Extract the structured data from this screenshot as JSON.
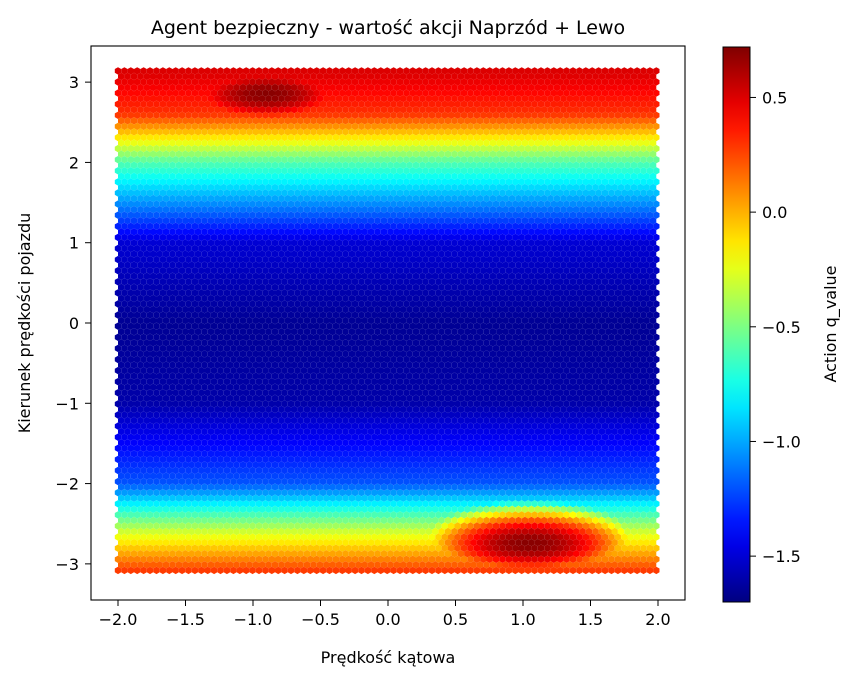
{
  "chart_data": {
    "type": "heatmap",
    "subtype": "hexbin",
    "title": "Agent bezpieczny - wartość akcji Naprzód + Lewo",
    "xlabel": "Prędkość kątowa",
    "ylabel": "Kierunek prędkości pojazdu",
    "xlim": [
      -2.2,
      2.2
    ],
    "ylim": [
      -3.45,
      3.45
    ],
    "x_ticks": [
      -2.0,
      -1.5,
      -1.0,
      -0.5,
      0.0,
      0.5,
      1.0,
      1.5,
      2.0
    ],
    "x_tick_labels": [
      "−2.0",
      "−1.5",
      "−1.0",
      "−0.5",
      "0.0",
      "0.5",
      "1.0",
      "1.5",
      "2.0"
    ],
    "y_ticks": [
      3,
      2,
      1,
      0,
      -1,
      -2,
      -3
    ],
    "y_tick_labels": [
      "3",
      "2",
      "1",
      "0",
      "−1",
      "−2",
      "−3"
    ],
    "grid": false,
    "colorbar": {
      "label": "Action q_value",
      "colormap": "jet",
      "range": [
        -1.7,
        0.72
      ],
      "ticks": [
        0.5,
        0.0,
        -0.5,
        -1.0,
        -1.5
      ],
      "tick_labels": [
        "0.5",
        "0.0",
        "−0.5",
        "−1.0",
        "−1.5"
      ]
    },
    "data_extent": {
      "x": [
        -2.0,
        2.0
      ],
      "y": [
        -3.14,
        3.14
      ]
    },
    "value_profile": [
      {
        "direction": -3.1,
        "value": 0.3
      },
      {
        "direction": -2.6,
        "value": -0.3
      },
      {
        "direction": -2.0,
        "value": -1.2
      },
      {
        "direction": -1.0,
        "value": -1.6
      },
      {
        "direction": 0.0,
        "value": -1.65
      },
      {
        "direction": 1.0,
        "value": -1.5
      },
      {
        "direction": 2.0,
        "value": -0.6
      },
      {
        "direction": 2.6,
        "value": 0.3
      },
      {
        "direction": 3.1,
        "value": 0.5
      }
    ],
    "hot_spots": [
      {
        "x": -0.9,
        "y": 2.85,
        "value": 0.7
      },
      {
        "x": 1.05,
        "y": -2.75,
        "value": 0.7
      }
    ]
  }
}
